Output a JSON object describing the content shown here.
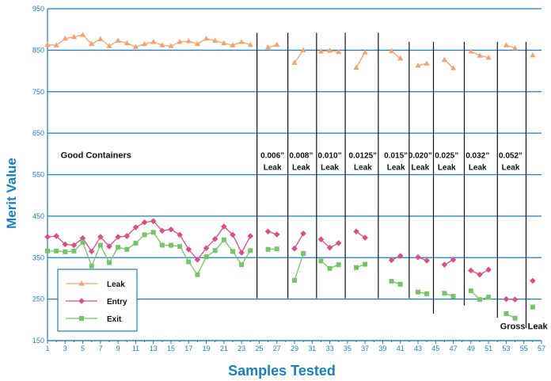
{
  "chart_data": {
    "type": "line",
    "title": "",
    "xlabel": "Samples Tested",
    "ylabel": "Merit Value",
    "xlim": [
      1,
      57
    ],
    "ylim": [
      150,
      950
    ],
    "x_ticks": [
      1,
      3,
      5,
      7,
      9,
      11,
      13,
      15,
      17,
      19,
      21,
      23,
      25,
      27,
      29,
      31,
      33,
      35,
      37,
      39,
      41,
      43,
      45,
      47,
      49,
      51,
      53,
      55,
      57
    ],
    "y_ticks": [
      150,
      250,
      350,
      450,
      550,
      650,
      750,
      850,
      950
    ],
    "grid": "horizontal",
    "legend_position": "bottom-left",
    "colors": {
      "axis": "#1a7fc1",
      "leak": "#f6a26a",
      "entry": "#d94f86",
      "exit": "#74c566"
    },
    "series": [
      {
        "name": "Leak",
        "marker": "triangle",
        "segments": [
          [
            [
              1,
              863
            ],
            [
              2,
              862
            ],
            [
              3,
              878
            ],
            [
              4,
              882
            ],
            [
              5,
              887
            ],
            [
              6,
              865
            ],
            [
              7,
              877
            ],
            [
              8,
              860
            ],
            [
              9,
              873
            ],
            [
              10,
              867
            ],
            [
              11,
              858
            ],
            [
              12,
              865
            ],
            [
              13,
              870
            ],
            [
              14,
              862
            ],
            [
              15,
              860
            ],
            [
              16,
              870
            ],
            [
              17,
              872
            ],
            [
              18,
              865
            ],
            [
              19,
              878
            ],
            [
              20,
              873
            ],
            [
              21,
              867
            ],
            [
              22,
              862
            ],
            [
              23,
              870
            ],
            [
              24,
              863
            ]
          ],
          [
            [
              26,
              857
            ],
            [
              27,
              863
            ]
          ],
          [
            [
              29,
              820
            ],
            [
              30,
              850
            ]
          ],
          [
            [
              32,
              847
            ],
            [
              33,
              849
            ],
            [
              34,
              846
            ]
          ],
          [
            [
              36,
              808
            ],
            [
              37,
              845
            ]
          ],
          [
            [
              40,
              848
            ],
            [
              41,
              830
            ]
          ],
          [
            [
              43,
              813
            ],
            [
              44,
              818
            ]
          ],
          [
            [
              46,
              827
            ],
            [
              47,
              807
            ]
          ],
          [
            [
              49,
              847
            ],
            [
              50,
              837
            ],
            [
              51,
              832
            ]
          ],
          [
            [
              53,
              862
            ],
            [
              54,
              855
            ]
          ],
          [
            [
              56,
              838
            ]
          ]
        ]
      },
      {
        "name": "Entry",
        "marker": "diamond",
        "segments": [
          [
            [
              1,
              400
            ],
            [
              2,
              402
            ],
            [
              3,
              382
            ],
            [
              4,
              380
            ],
            [
              5,
              397
            ],
            [
              6,
              365
            ],
            [
              7,
              400
            ],
            [
              8,
              377
            ],
            [
              9,
              400
            ],
            [
              10,
              402
            ],
            [
              11,
              423
            ],
            [
              12,
              435
            ],
            [
              13,
              438
            ],
            [
              14,
              415
            ],
            [
              15,
              418
            ],
            [
              16,
              405
            ],
            [
              17,
              370
            ],
            [
              18,
              345
            ],
            [
              19,
              373
            ],
            [
              20,
              395
            ],
            [
              21,
              425
            ],
            [
              22,
              405
            ],
            [
              23,
              362
            ],
            [
              24,
              402
            ]
          ],
          [
            [
              26,
              413
            ],
            [
              27,
              406
            ]
          ],
          [
            [
              29,
              372
            ],
            [
              30,
              408
            ]
          ],
          [
            [
              32,
              394
            ],
            [
              33,
              374
            ],
            [
              34,
              385
            ]
          ],
          [
            [
              36,
              413
            ],
            [
              37,
              398
            ]
          ],
          [
            [
              40,
              344
            ],
            [
              41,
              354
            ]
          ],
          [
            [
              43,
              351
            ],
            [
              44,
              343
            ]
          ],
          [
            [
              46,
              333
            ],
            [
              47,
              345
            ]
          ],
          [
            [
              49,
              319
            ],
            [
              50,
              309
            ],
            [
              51,
              321
            ]
          ],
          [
            [
              53,
              250
            ],
            [
              54,
              249
            ]
          ],
          [
            [
              56,
              294
            ]
          ]
        ]
      },
      {
        "name": "Exit",
        "marker": "square",
        "segments": [
          [
            [
              1,
              366
            ],
            [
              2,
              366
            ],
            [
              3,
              364
            ],
            [
              4,
              366
            ],
            [
              5,
              387
            ],
            [
              6,
              330
            ],
            [
              7,
              380
            ],
            [
              8,
              338
            ],
            [
              9,
              375
            ],
            [
              10,
              370
            ],
            [
              11,
              385
            ],
            [
              12,
              405
            ],
            [
              13,
              411
            ],
            [
              14,
              380
            ],
            [
              15,
              380
            ],
            [
              16,
              377
            ],
            [
              17,
              340
            ],
            [
              18,
              309
            ],
            [
              19,
              352
            ],
            [
              20,
              367
            ],
            [
              21,
              393
            ],
            [
              22,
              365
            ],
            [
              23,
              333
            ],
            [
              24,
              367
            ]
          ],
          [
            [
              26,
              370
            ],
            [
              27,
              371
            ]
          ],
          [
            [
              29,
              295
            ],
            [
              30,
              360
            ]
          ],
          [
            [
              32,
              342
            ],
            [
              33,
              324
            ],
            [
              34,
              333
            ]
          ],
          [
            [
              36,
              326
            ],
            [
              37,
              334
            ]
          ],
          [
            [
              40,
              293
            ],
            [
              41,
              286
            ]
          ],
          [
            [
              43,
              267
            ],
            [
              44,
              263
            ]
          ],
          [
            [
              46,
              264
            ],
            [
              47,
              257
            ]
          ],
          [
            [
              49,
              270
            ],
            [
              50,
              249
            ],
            [
              51,
              255
            ]
          ],
          [
            [
              53,
              215
            ],
            [
              54,
              204
            ]
          ],
          [
            [
              56,
              231
            ]
          ]
        ]
      }
    ],
    "group_annotations": [
      {
        "label": "Good Containers",
        "x_center": 6.5,
        "y": 590
      },
      {
        "label": "0.006”",
        "sub": "Leak",
        "x_center": 26.5
      },
      {
        "label": "0.008”",
        "sub": "Leak",
        "x_center": 29.75
      },
      {
        "label": "0.010”",
        "sub": "Leak",
        "x_center": 33.0
      },
      {
        "label": "0.0125”",
        "sub": "Leak",
        "x_center": 36.75
      },
      {
        "label": "0.015”",
        "sub": "Leak",
        "x_center": 40.5
      },
      {
        "label": "0.020”",
        "sub": "Leak",
        "x_center": 43.25
      },
      {
        "label": "0.025”",
        "sub": "Leak",
        "x_center": 46.25
      },
      {
        "label": "0.032”",
        "sub": "Leak",
        "x_center": 49.75
      },
      {
        "label": "0.052”",
        "sub": "Leak",
        "x_center": 53.5
      },
      {
        "label": "Gross Leak",
        "x_center": 55.0,
        "y": 178
      }
    ],
    "separators": [
      {
        "x": 24.75,
        "from": 252,
        "to": 892
      },
      {
        "x": 28.25,
        "from": 252,
        "to": 892
      },
      {
        "x": 31.5,
        "from": 252,
        "to": 892
      },
      {
        "x": 34.75,
        "from": 252,
        "to": 892
      },
      {
        "x": 38.5,
        "from": 252,
        "to": 892
      },
      {
        "x": 42.0,
        "from": 252,
        "to": 870
      },
      {
        "x": 44.75,
        "from": 215,
        "to": 870
      },
      {
        "x": 48.25,
        "from": 235,
        "to": 870
      },
      {
        "x": 52.0,
        "from": 205,
        "to": 870
      },
      {
        "x": 55.25,
        "from": 180,
        "to": 870
      }
    ]
  }
}
